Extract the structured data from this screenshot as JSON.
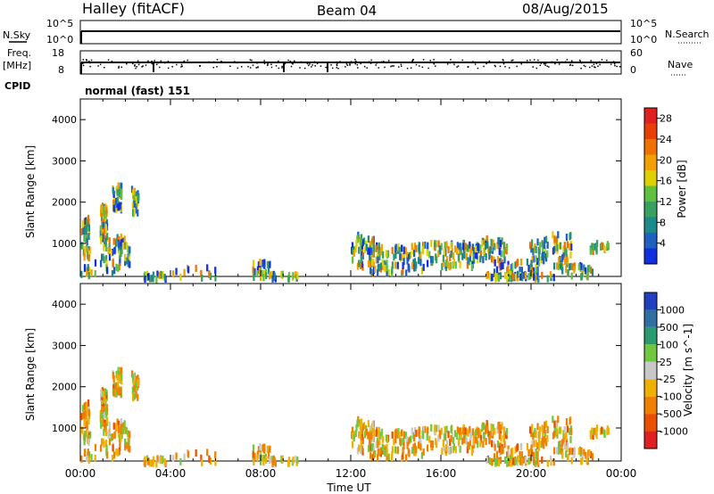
{
  "header": {
    "station": "Halley (fitACF)",
    "beam": "Beam 04",
    "date": "08/Aug/2015"
  },
  "strip_labels": {
    "nsky": "N.Sky",
    "nsky_tick_hi": "10^5",
    "nsky_tick_lo": "10^0",
    "nsearch": "N.Search",
    "nsearch_tick_hi": "10^5",
    "nsearch_tick_lo": "10^0",
    "freq_line1": "Freq.",
    "freq_line2": "[MHz]",
    "freq_tick_hi": "18",
    "freq_tick_lo": "8",
    "nave": "Nave",
    "nave_tick_hi": "60",
    "nave_tick_lo": "0",
    "cpid": "CPID",
    "mode": "normal (fast) 151"
  },
  "chart_data": [
    {
      "type": "heatmap",
      "name": "power",
      "ylabel": "Slant Range [km]",
      "xlabel": "",
      "x_ticks": [
        "00:00",
        "04:00",
        "08:00",
        "12:00",
        "16:00",
        "20:00",
        "00:00"
      ],
      "x_tick_hours": [
        0,
        4,
        8,
        12,
        16,
        20,
        24
      ],
      "y_ticks": [
        1000,
        2000,
        3000,
        4000
      ],
      "ylim": [
        200,
        4500
      ],
      "xlim_hours": [
        0,
        24
      ],
      "colorbar": {
        "label": "Power [dB]",
        "ticks": [
          "4",
          "8",
          "12",
          "16",
          "20",
          "24",
          "28"
        ],
        "range": [
          0,
          30
        ],
        "colors": [
          "#1030e0",
          "#2060c0",
          "#1a8a8a",
          "#3aa060",
          "#60c040",
          "#e0d000",
          "#f0a000",
          "#f07000",
          "#e84000",
          "#e02020"
        ]
      }
    },
    {
      "type": "heatmap",
      "name": "velocity",
      "ylabel": "Slant Range [km]",
      "xlabel": "Time UT",
      "x_ticks": [
        "00:00",
        "04:00",
        "08:00",
        "12:00",
        "16:00",
        "20:00",
        "00:00"
      ],
      "x_tick_hours": [
        0,
        4,
        8,
        12,
        16,
        20,
        24
      ],
      "y_ticks": [
        1000,
        2000,
        3000,
        4000
      ],
      "ylim": [
        200,
        4500
      ],
      "xlim_hours": [
        0,
        24
      ],
      "colorbar": {
        "label": "Velocity [m s^-1]",
        "ticks": [
          "1000",
          "500",
          "100",
          "25",
          "-25",
          "-100",
          "-500",
          "-1000"
        ],
        "colors": [
          "#2040c0",
          "#3070a0",
          "#2a9a70",
          "#70c840",
          "#c8c8c8",
          "#f0b000",
          "#f08000",
          "#e85000",
          "#e02020"
        ]
      }
    }
  ]
}
